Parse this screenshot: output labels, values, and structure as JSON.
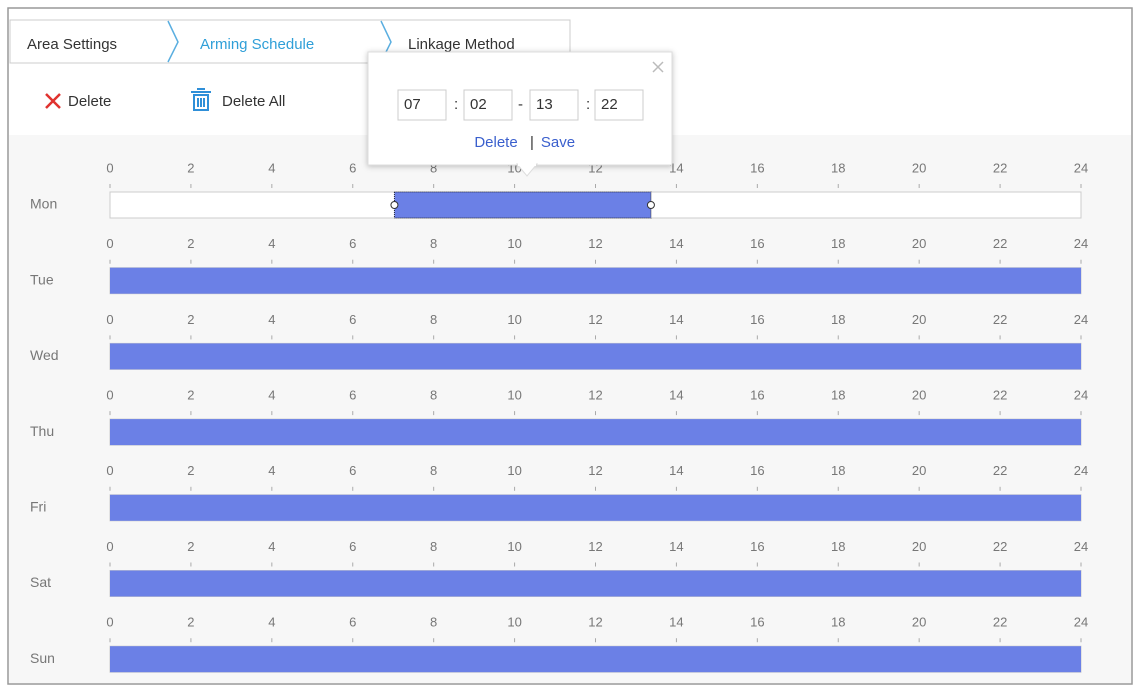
{
  "tabs": [
    "Area Settings",
    "Arming Schedule",
    "Linkage Method"
  ],
  "toolbar": {
    "delete": "Delete",
    "delete_all": "Delete All"
  },
  "popup": {
    "start_hour": "07",
    "start_minute": "02",
    "end_hour": "13",
    "end_minute": "22",
    "time_separator": ":",
    "range_separator": "-",
    "delete": "Delete",
    "link_separator": "|",
    "save": "Save"
  },
  "schedule": {
    "hour_ticks": [
      0,
      2,
      4,
      6,
      8,
      10,
      12,
      14,
      16,
      18,
      20,
      22,
      24
    ],
    "days": [
      {
        "name": "Mon",
        "segments": [
          {
            "start": 7.03,
            "end": 13.37
          }
        ]
      },
      {
        "name": "Tue",
        "segments": [
          {
            "start": 0,
            "end": 24
          }
        ]
      },
      {
        "name": "Wed",
        "segments": [
          {
            "start": 0,
            "end": 24
          }
        ]
      },
      {
        "name": "Thu",
        "segments": [
          {
            "start": 0,
            "end": 24
          }
        ]
      },
      {
        "name": "Fri",
        "segments": [
          {
            "start": 0,
            "end": 24
          }
        ]
      },
      {
        "name": "Sat",
        "segments": [
          {
            "start": 0,
            "end": 24
          }
        ]
      },
      {
        "name": "Sun",
        "segments": [
          {
            "start": 0,
            "end": 24
          }
        ]
      }
    ]
  }
}
